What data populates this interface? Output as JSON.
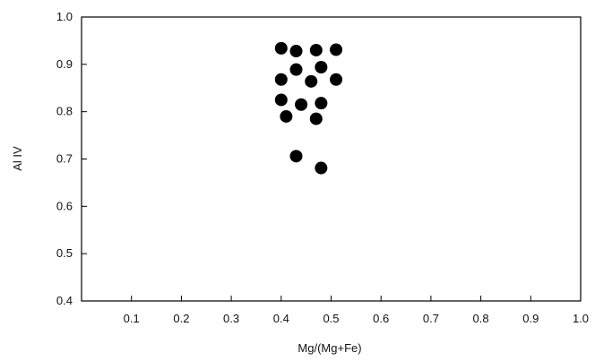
{
  "chart_data": {
    "type": "scatter",
    "xlabel": "Mg/(Mg+Fe)",
    "ylabel": "Al IV",
    "xlim": [
      0.0,
      1.0
    ],
    "ylim": [
      0.4,
      1.0
    ],
    "xticks": [
      0.1,
      0.2,
      0.3,
      0.4,
      0.5,
      0.6,
      0.7,
      0.8,
      0.9,
      1.0
    ],
    "xtick_labels": [
      "0.1",
      "0.2",
      "0.3",
      "0.4",
      "0.5",
      "0.6",
      "0.7",
      "0.8",
      "0.9",
      "1.0"
    ],
    "yticks": [
      0.4,
      0.5,
      0.6,
      0.7,
      0.8,
      0.9,
      1.0
    ],
    "ytick_labels": [
      "0.4",
      "0.5",
      "0.6",
      "0.7",
      "0.8",
      "0.9",
      "1.0"
    ],
    "grid": false,
    "marker_color": "#000000",
    "series": [
      {
        "points": [
          {
            "x": 0.4,
            "y": 0.934
          },
          {
            "x": 0.43,
            "y": 0.928
          },
          {
            "x": 0.47,
            "y": 0.93
          },
          {
            "x": 0.51,
            "y": 0.931
          },
          {
            "x": 0.43,
            "y": 0.889
          },
          {
            "x": 0.48,
            "y": 0.894
          },
          {
            "x": 0.4,
            "y": 0.868
          },
          {
            "x": 0.46,
            "y": 0.864
          },
          {
            "x": 0.51,
            "y": 0.868
          },
          {
            "x": 0.4,
            "y": 0.825
          },
          {
            "x": 0.44,
            "y": 0.815
          },
          {
            "x": 0.48,
            "y": 0.818
          },
          {
            "x": 0.41,
            "y": 0.79
          },
          {
            "x": 0.47,
            "y": 0.785
          },
          {
            "x": 0.43,
            "y": 0.706
          },
          {
            "x": 0.48,
            "y": 0.681
          }
        ]
      }
    ]
  }
}
